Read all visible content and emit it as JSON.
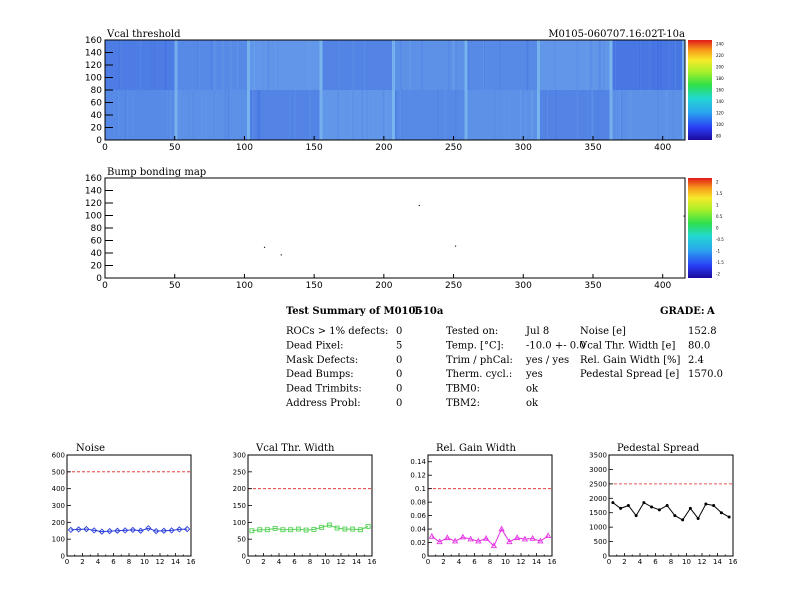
{
  "module_id": "M0105-060707.16:02T-10a",
  "summary": {
    "title": "Test Summary of M0105",
    "temp_tag": "T-10a",
    "grade_label": "GRADE:",
    "grade": "A",
    "left_items": [
      {
        "label": "ROCs > 1% defects:",
        "value": "0"
      },
      {
        "label": "Dead Pixel:",
        "value": "5"
      },
      {
        "label": "Mask Defects:",
        "value": "0"
      },
      {
        "label": "Dead Bumps:",
        "value": "0"
      },
      {
        "label": "Dead Trimbits:",
        "value": "0"
      },
      {
        "label": "Address Probl:",
        "value": "0"
      }
    ],
    "mid_items": [
      {
        "label": "Tested on:",
        "value": "Jul 8"
      },
      {
        "label": "Temp. [°C]:",
        "value": "-10.0 +- 0.0"
      },
      {
        "label": "Trim / phCal:",
        "value": "yes / yes"
      },
      {
        "label": "Therm. cycl.:",
        "value": "yes"
      },
      {
        "label": "TBM0:",
        "value": "ok"
      },
      {
        "label": "TBM2:",
        "value": "ok"
      }
    ],
    "right_items": [
      {
        "label": "Noise [e]",
        "value": "152.8"
      },
      {
        "label": "Vcal Thr. Width [e]",
        "value": "80.0"
      },
      {
        "label": "Rel. Gain Width [%]",
        "value": "2.4"
      },
      {
        "label": "Pedestal Spread [e]",
        "value": "1570.0"
      }
    ]
  },
  "chart_data": [
    {
      "type": "heatmap",
      "title": "Vcal threshold",
      "xlim": [
        0,
        416
      ],
      "ylim": [
        0,
        160
      ],
      "xticks": [
        0,
        50,
        100,
        150,
        200,
        250,
        300,
        350,
        400
      ],
      "yticks": [
        0,
        20,
        40,
        60,
        80,
        100,
        120,
        140,
        160
      ],
      "z_palette_ticks": [
        "240",
        "220",
        "200",
        "180",
        "160",
        "140",
        "120",
        "100",
        "80"
      ],
      "grid": "8x2 ROCs",
      "colors": {
        "low": "#2a4fdc",
        "high": "#8fd0f2"
      }
    },
    {
      "type": "heatmap",
      "title": "Bump bonding map",
      "xlim": [
        0,
        416
      ],
      "ylim": [
        0,
        160
      ],
      "xticks": [
        0,
        50,
        100,
        150,
        200,
        250,
        300,
        350,
        400
      ],
      "yticks": [
        0,
        20,
        40,
        60,
        80,
        100,
        120,
        140,
        160
      ],
      "z_palette_ticks": [
        "2",
        "1.5",
        "1",
        "0.5",
        "0",
        "-0.5",
        "-1",
        "-1.5",
        "-2"
      ],
      "points": [
        [
          114,
          50
        ],
        [
          126,
          38
        ],
        [
          225,
          117
        ],
        [
          251,
          52
        ],
        [
          415,
          100
        ]
      ]
    },
    {
      "type": "line",
      "title": "Noise",
      "x": [
        0,
        1,
        2,
        3,
        4,
        5,
        6,
        7,
        8,
        9,
        10,
        11,
        12,
        13,
        14,
        15
      ],
      "values": [
        155,
        158,
        160,
        152,
        145,
        148,
        150,
        152,
        155,
        150,
        165,
        148,
        150,
        152,
        158,
        160
      ],
      "xlim": [
        0,
        16
      ],
      "ylim": [
        0,
        600
      ],
      "yticks": [
        0,
        100,
        200,
        300,
        400,
        500,
        600
      ],
      "xticks": [
        0,
        2,
        4,
        6,
        8,
        10,
        12,
        14,
        16
      ],
      "threshold": 500,
      "color": "#2b3ed8",
      "marker": "diamond"
    },
    {
      "type": "line",
      "title": "Vcal Thr. Width",
      "x": [
        0,
        1,
        2,
        3,
        4,
        5,
        6,
        7,
        8,
        9,
        10,
        11,
        12,
        13,
        14,
        15
      ],
      "values": [
        75,
        78,
        78,
        82,
        78,
        78,
        80,
        77,
        79,
        85,
        92,
        83,
        80,
        80,
        78,
        88
      ],
      "xlim": [
        0,
        16
      ],
      "ylim": [
        0,
        300
      ],
      "yticks": [
        0,
        50,
        100,
        150,
        200,
        250,
        300
      ],
      "xticks": [
        0,
        2,
        4,
        6,
        8,
        10,
        12,
        14,
        16
      ],
      "threshold": 200,
      "color": "#55d255",
      "marker": "square"
    },
    {
      "type": "line",
      "title": "Rel. Gain Width",
      "x": [
        0,
        1,
        2,
        3,
        4,
        5,
        6,
        7,
        8,
        9,
        10,
        11,
        12,
        13,
        14,
        15
      ],
      "values": [
        0.029,
        0.021,
        0.027,
        0.022,
        0.028,
        0.025,
        0.022,
        0.026,
        0.015,
        0.04,
        0.021,
        0.027,
        0.025,
        0.026,
        0.022,
        0.03
      ],
      "xlim": [
        0,
        16
      ],
      "ylim": [
        0,
        0.15
      ],
      "yticks": [
        0,
        0.02,
        0.04,
        0.06,
        0.08,
        0.1,
        0.12,
        0.14
      ],
      "yticklabels": [
        "0",
        "0.02",
        "0.04",
        "0.06",
        "0.08",
        "0.1",
        "0.12",
        "0.14"
      ],
      "xticks": [
        0,
        2,
        4,
        6,
        8,
        10,
        12,
        14,
        16
      ],
      "threshold": 0.1,
      "color": "#e433e4",
      "marker": "triangle"
    },
    {
      "type": "line",
      "title": "Pedestal Spread",
      "x": [
        0,
        1,
        2,
        3,
        4,
        5,
        6,
        7,
        8,
        9,
        10,
        11,
        12,
        13,
        14,
        15
      ],
      "values": [
        1850,
        1650,
        1750,
        1400,
        1850,
        1700,
        1600,
        1750,
        1400,
        1250,
        1650,
        1300,
        1800,
        1750,
        1500,
        1350
      ],
      "xlim": [
        0,
        16
      ],
      "ylim": [
        0,
        3500
      ],
      "yticks": [
        0,
        500,
        1000,
        1500,
        2000,
        2500,
        3000,
        3500
      ],
      "xticks": [
        0,
        2,
        4,
        6,
        8,
        10,
        12,
        14,
        16
      ],
      "threshold": 2500,
      "color": "#000000",
      "marker": "dot"
    }
  ]
}
